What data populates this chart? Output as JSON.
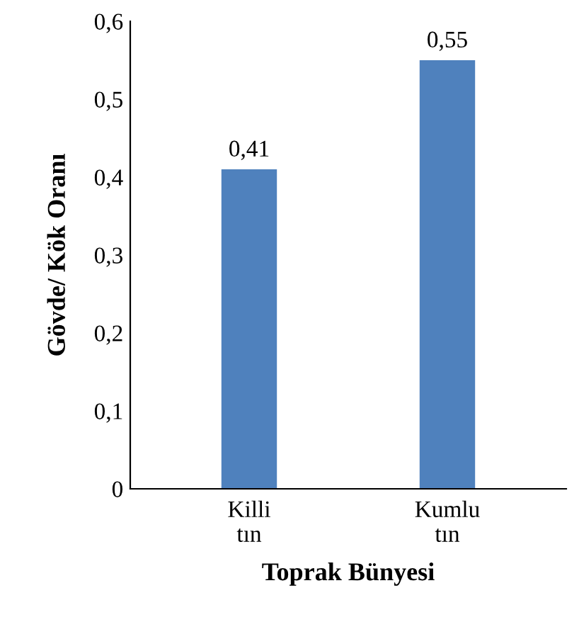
{
  "chart_data": {
    "type": "bar",
    "xlabel": "Toprak Bünyesi",
    "ylabel": "Gövde/ Kök Oranı",
    "categories": [
      "Killi\ntın",
      "Kumlu\ntın"
    ],
    "values": [
      0.41,
      0.55
    ],
    "value_labels": [
      "0,41",
      "0,55"
    ],
    "color": "#4f81bd",
    "ylim": [
      0,
      0.6
    ],
    "yticks": [
      0,
      {
        "value": 0.1,
        "label": "0,1"
      },
      {
        "value": 0.2,
        "label": "0,2"
      },
      {
        "value": 0.3,
        "label": "0,3"
      },
      {
        "value": 0.4,
        "label": "0,4"
      },
      {
        "value": 0.5,
        "label": "0,5"
      },
      {
        "value": 0.6,
        "label": "0,6"
      }
    ],
    "grid": false,
    "legend": false
  }
}
